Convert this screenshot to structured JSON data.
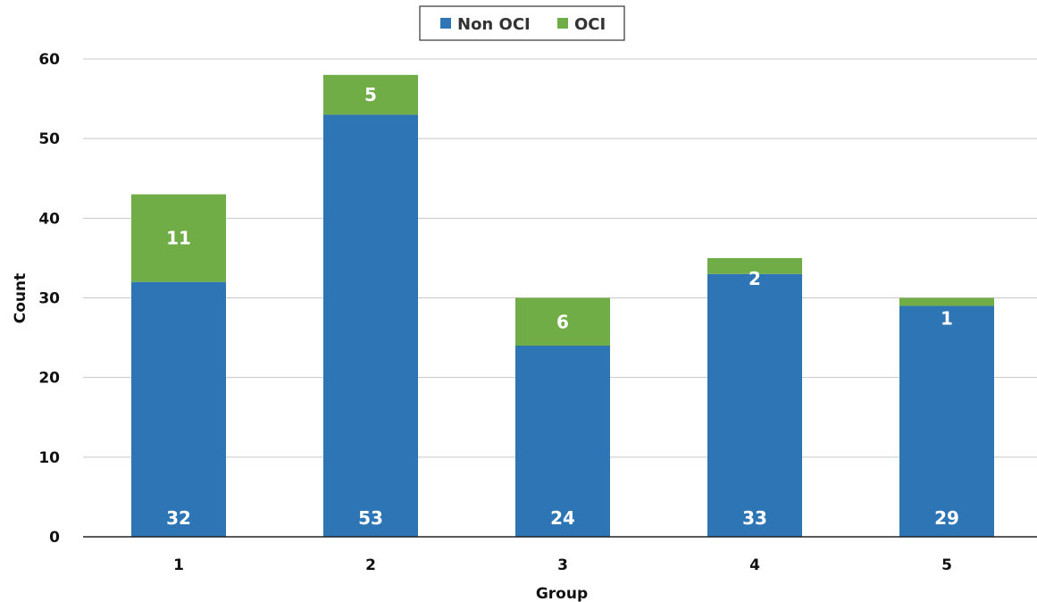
{
  "chart_data": {
    "type": "bar",
    "stacked": true,
    "categories": [
      "1",
      "2",
      "3",
      "4",
      "5"
    ],
    "series": [
      {
        "name": "Non OCI",
        "values": [
          32,
          53,
          24,
          33,
          29
        ],
        "color": "#2E75B6"
      },
      {
        "name": "OCI",
        "values": [
          11,
          5,
          6,
          2,
          1
        ],
        "color": "#70AD47"
      }
    ],
    "title": "",
    "xlabel": "Group",
    "ylabel": "Count",
    "ylim": [
      0,
      60
    ],
    "yticks": [
      0,
      10,
      20,
      30,
      40,
      50,
      60
    ],
    "grid": true,
    "legend_position": "top-center",
    "data_labels": true
  }
}
